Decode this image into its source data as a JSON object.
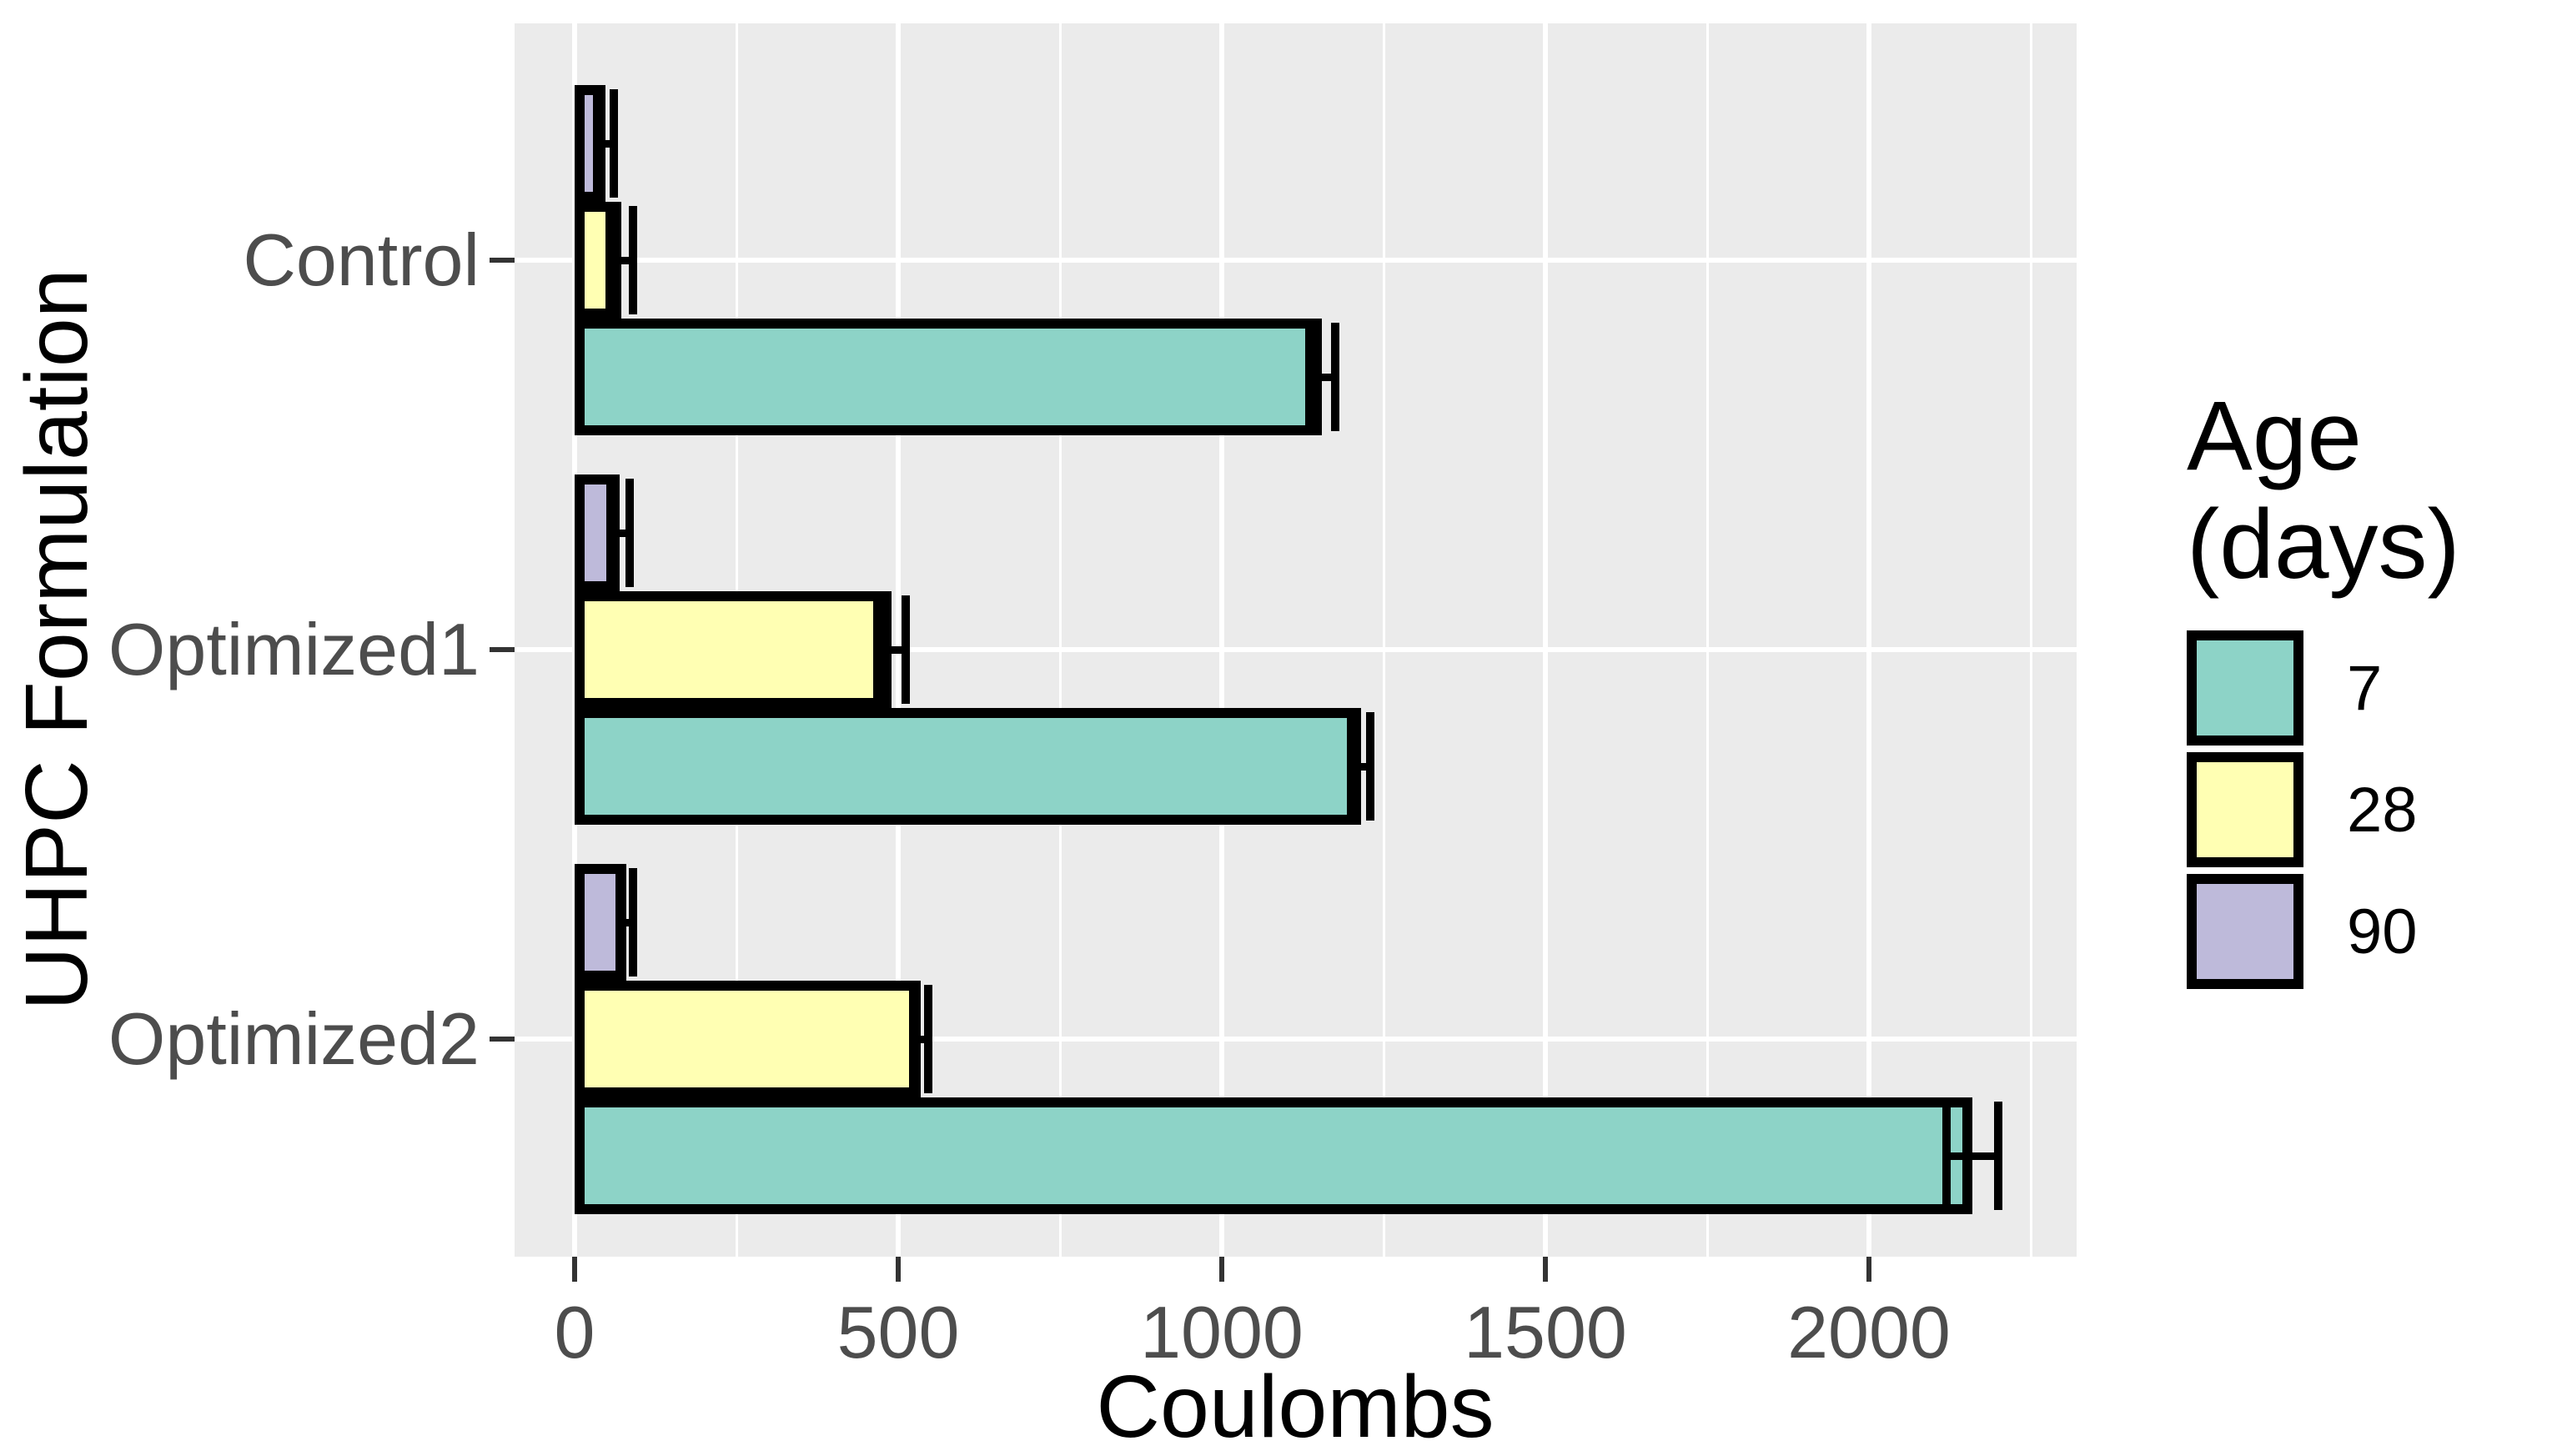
{
  "chart_data": {
    "type": "bar",
    "orientation": "horizontal",
    "xlabel": "Coulombs",
    "ylabel": "UHPC Formulation",
    "categories": [
      "Control",
      "Optimized1",
      "Optimized2"
    ],
    "series": [
      {
        "name": "7",
        "color": "#8DD3C7",
        "values": [
          1155,
          1215,
          2160
        ],
        "errors": [
          20,
          15,
          40
        ]
      },
      {
        "name": "28",
        "color": "#FFFFB3",
        "values": [
          72,
          490,
          535
        ],
        "errors": [
          18,
          22,
          12
        ]
      },
      {
        "name": "90",
        "color": "#BEBADA",
        "values": [
          48,
          70,
          80
        ],
        "errors": [
          13,
          15,
          10
        ]
      }
    ],
    "bar_order_top_to_bottom": [
      "90",
      "28",
      "7"
    ],
    "x_ticks": [
      0,
      500,
      1000,
      1500,
      2000
    ],
    "x_minor_ticks": [
      250,
      750,
      1250,
      1750,
      2250
    ],
    "xlim": [
      -95,
      2320
    ],
    "grid": true,
    "legend": {
      "title": "Age (days)",
      "entries": [
        "7",
        "28",
        "90"
      ],
      "position": "right"
    },
    "style": {
      "panel_bg": "#EBEBEB",
      "grid_color": "#FFFFFF",
      "bar_border_color": "#000000",
      "tick_label_color": "#4D4D4D",
      "axis_title_color": "#000000",
      "tick_mark_color": "#333333",
      "background": "#FFFFFF"
    }
  }
}
